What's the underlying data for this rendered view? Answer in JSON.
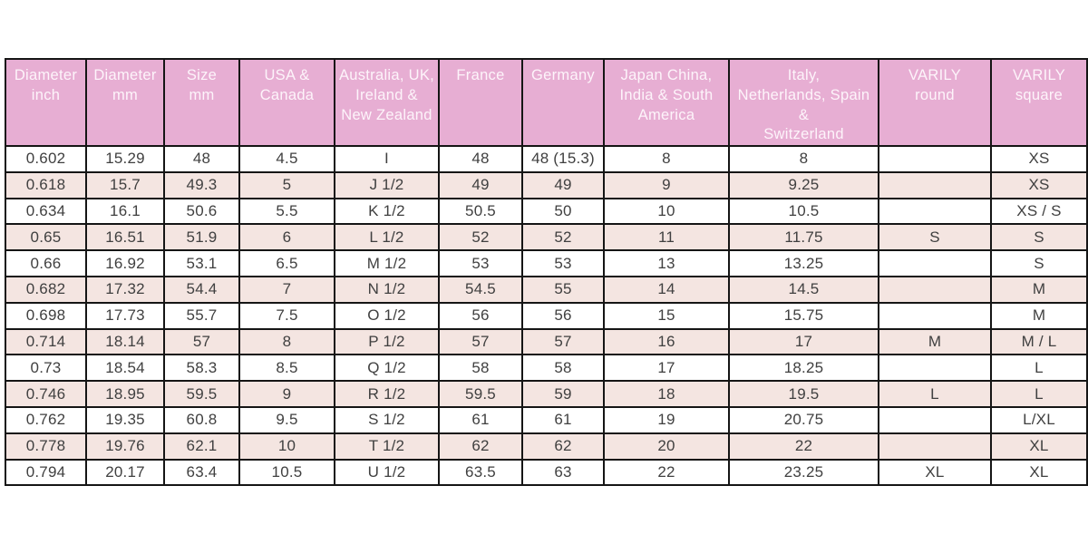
{
  "theme": {
    "header_bg": "#e7aed3",
    "header_text": "#fdf4fa",
    "row_bg": "#ffffff",
    "row_alt_bg": "#f4e5e1",
    "border_color": "#151515",
    "cell_text": "#404040",
    "page_bg": "#ffffff"
  },
  "chart_data": {
    "type": "table",
    "columns": [
      {
        "name": "diameter-inch",
        "label": "Diameter inch",
        "lines": [
          "Diameter",
          "inch"
        ]
      },
      {
        "name": "diameter-mm",
        "label": "Diameter mm",
        "lines": [
          "Diameter",
          "mm"
        ]
      },
      {
        "name": "size-mm",
        "label": "Size mm",
        "lines": [
          "Size",
          "mm"
        ]
      },
      {
        "name": "usa-canada",
        "label": "USA & Canada",
        "lines": [
          "USA &",
          "Canada"
        ]
      },
      {
        "name": "aus-uk-ire-nz",
        "label": "Australia, UK, Ireland & New Zealand",
        "lines": [
          "Australia, UK,",
          "Ireland &",
          "New Zealand"
        ]
      },
      {
        "name": "france",
        "label": "France",
        "lines": [
          "France"
        ]
      },
      {
        "name": "germany",
        "label": "Germany",
        "lines": [
          "Germany"
        ]
      },
      {
        "name": "japan-china-india-sa",
        "label": "Japan China, India & South America",
        "lines": [
          "Japan China,",
          "India & South",
          "America"
        ]
      },
      {
        "name": "italy-neth-spain-switz",
        "label": "Italy, Netherlands, Spain & Switzerland",
        "lines": [
          "Italy,",
          "Netherlands, Spain",
          "&",
          "Switzerland"
        ]
      },
      {
        "name": "varily-round",
        "label": "VARILY round",
        "lines": [
          "VARILY",
          "round"
        ]
      },
      {
        "name": "varily-square",
        "label": "VARILY square",
        "lines": [
          "VARILY",
          "square"
        ]
      }
    ],
    "rows": [
      [
        "0.602",
        "15.29",
        "48",
        "4.5",
        "I",
        "48",
        "48 (15.3)",
        "8",
        "8",
        "",
        "XS"
      ],
      [
        "0.618",
        "15.7",
        "49.3",
        "5",
        "J 1/2",
        "49",
        "49",
        "9",
        "9.25",
        "",
        "XS"
      ],
      [
        "0.634",
        "16.1",
        "50.6",
        "5.5",
        "K 1/2",
        "50.5",
        "50",
        "10",
        "10.5",
        "",
        "XS / S"
      ],
      [
        "0.65",
        "16.51",
        "51.9",
        "6",
        "L 1/2",
        "52",
        "52",
        "11",
        "11.75",
        "S",
        "S"
      ],
      [
        "0.66",
        "16.92",
        "53.1",
        "6.5",
        "M 1/2",
        "53",
        "53",
        "13",
        "13.25",
        "",
        "S"
      ],
      [
        "0.682",
        "17.32",
        "54.4",
        "7",
        "N 1/2",
        "54.5",
        "55",
        "14",
        "14.5",
        "",
        "M"
      ],
      [
        "0.698",
        "17.73",
        "55.7",
        "7.5",
        "O 1/2",
        "56",
        "56",
        "15",
        "15.75",
        "",
        "M"
      ],
      [
        "0.714",
        "18.14",
        "57",
        "8",
        "P 1/2",
        "57",
        "57",
        "16",
        "17",
        "M",
        "M / L"
      ],
      [
        "0.73",
        "18.54",
        "58.3",
        "8.5",
        "Q 1/2",
        "58",
        "58",
        "17",
        "18.25",
        "",
        "L"
      ],
      [
        "0.746",
        "18.95",
        "59.5",
        "9",
        "R 1/2",
        "59.5",
        "59",
        "18",
        "19.5",
        "L",
        "L"
      ],
      [
        "0.762",
        "19.35",
        "60.8",
        "9.5",
        "S 1/2",
        "61",
        "61",
        "19",
        "20.75",
        "",
        "L/XL"
      ],
      [
        "0.778",
        "19.76",
        "62.1",
        "10",
        "T 1/2",
        "62",
        "62",
        "20",
        "22",
        "",
        "XL"
      ],
      [
        "0.794",
        "20.17",
        "63.4",
        "10.5",
        "U 1/2",
        "63.5",
        "63",
        "22",
        "23.25",
        "XL",
        "XL"
      ]
    ]
  }
}
